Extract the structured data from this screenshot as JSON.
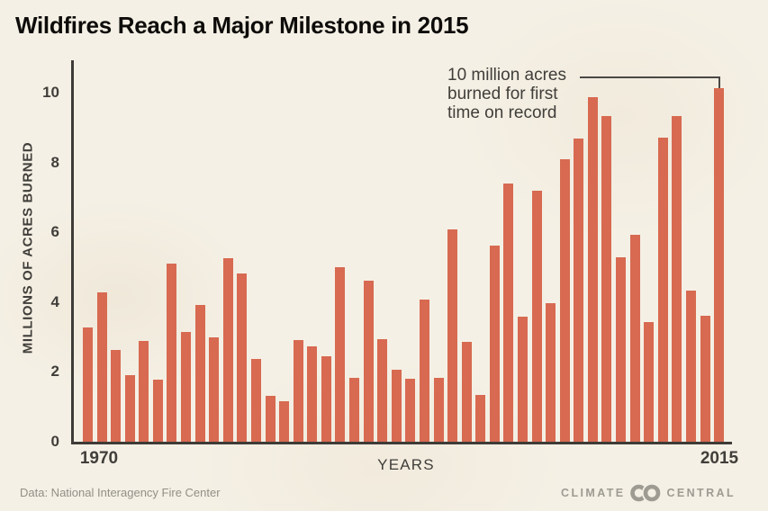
{
  "title": "Wildfires Reach a Major Milestone in 2015",
  "colors": {
    "background": "#f5f0e5",
    "bar": "#d76a51",
    "axis": "#3e3c38",
    "title_text": "#0d0c0a",
    "label_text": "#403e3a",
    "muted_text": "#918f87",
    "logo": "#9d9b92",
    "bracket": "#4a4845"
  },
  "chart_data": {
    "type": "bar",
    "title": "Wildfires Reach a Major Milestone in 2015",
    "xlabel": "YEARS",
    "ylabel": "MILLIONS OF ACRES BURNED",
    "x": [
      1970,
      1971,
      1972,
      1973,
      1974,
      1975,
      1976,
      1977,
      1978,
      1979,
      1980,
      1981,
      1982,
      1983,
      1984,
      1985,
      1986,
      1987,
      1988,
      1989,
      1990,
      1991,
      1992,
      1993,
      1994,
      1995,
      1996,
      1997,
      1998,
      1999,
      2000,
      2001,
      2002,
      2003,
      2004,
      2005,
      2006,
      2007,
      2008,
      2009,
      2010,
      2011,
      2012,
      2013,
      2014,
      2015
    ],
    "values": [
      3.28,
      4.28,
      2.64,
      1.92,
      2.88,
      1.79,
      5.11,
      3.15,
      3.91,
      2.99,
      5.26,
      4.81,
      2.38,
      1.32,
      1.15,
      2.9,
      2.72,
      2.45,
      5.01,
      1.83,
      4.62,
      2.95,
      2.07,
      1.8,
      4.07,
      1.84,
      6.07,
      2.86,
      1.33,
      5.63,
      7.39,
      3.57,
      7.18,
      3.96,
      8.1,
      8.69,
      9.87,
      9.33,
      5.29,
      5.92,
      3.42,
      8.71,
      9.33,
      4.32,
      3.6,
      10.13
    ],
    "ylim": [
      0,
      11
    ],
    "y_ticks": [
      0,
      2,
      4,
      6,
      8,
      10
    ],
    "x_axis_labels": [
      "1970",
      "2015"
    ],
    "grid": false,
    "legend": null,
    "annotation": "10 million acres burned for first time on record",
    "annotation_target_year": 2015
  },
  "annotation": {
    "line1": "10 million acres",
    "line2": "burned for first",
    "line3": "time on record"
  },
  "footer": {
    "source": "Data: National Interagency Fire Center",
    "logo_word_left": "CLIMATE",
    "logo_word_right": "CENTRAL"
  }
}
